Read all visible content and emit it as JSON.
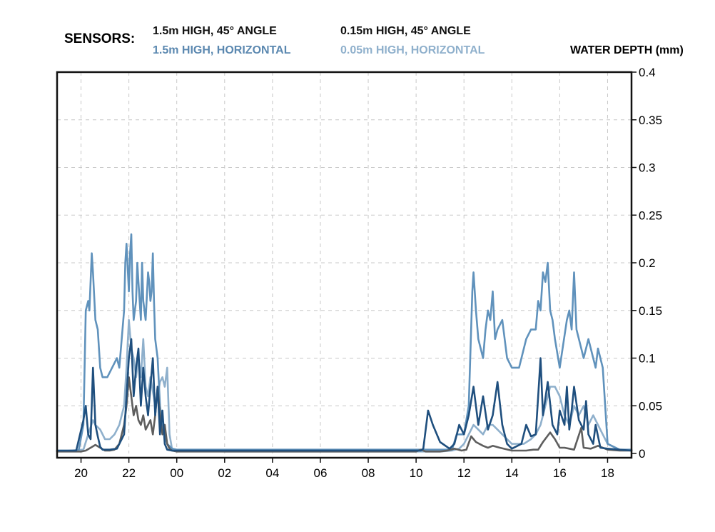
{
  "chart_data": {
    "type": "line",
    "legend": {
      "title": "SENSORS:",
      "placement": "top"
    },
    "y_label": "WATER DEPTH (mm)",
    "x_ticks": [
      "20",
      "22",
      "00",
      "02",
      "04",
      "06",
      "08",
      "10",
      "12",
      "14",
      "16",
      "18"
    ],
    "y_ticks": [
      "0",
      "0.05",
      "0.1",
      "0.15",
      "0.2",
      "0.25",
      "0.3",
      "0.35",
      "0.4"
    ],
    "x_range_hours": [
      19,
      43
    ],
    "x_tick_hours": [
      20,
      22,
      24,
      26,
      28,
      30,
      32,
      34,
      36,
      38,
      40,
      42
    ],
    "ylim": [
      0,
      0.4
    ],
    "y_tick_values": [
      0,
      0.05,
      0.1,
      0.15,
      0.2,
      0.25,
      0.3,
      0.35,
      0.4
    ],
    "grid": true,
    "series": [
      {
        "name": "1.5m HIGH, 45° ANGLE",
        "color": "#111111",
        "legend_text_color": "#111111",
        "line_color": "#5e5e5e",
        "x": [
          19,
          20,
          20.2,
          20.4,
          20.6,
          20.8,
          21,
          21.2,
          21.4,
          21.6,
          21.8,
          21.9,
          22,
          22.1,
          22.2,
          22.3,
          22.4,
          22.5,
          22.6,
          22.7,
          22.8,
          22.9,
          23,
          23.1,
          23.2,
          23.3,
          23.4,
          23.5,
          23.6,
          23.7,
          23.8,
          24,
          26,
          28,
          30,
          32,
          34,
          34.2,
          34.4,
          35,
          35.3,
          35.6,
          35.9,
          36.1,
          36.3,
          36.5,
          36.8,
          37,
          37.2,
          37.5,
          38,
          38.3,
          38.6,
          38.9,
          39.1,
          39.3,
          39.6,
          39.8,
          40,
          40.2,
          40.4,
          40.6,
          40.9,
          41,
          41.3,
          41.6,
          42,
          42.5,
          43
        ],
        "y": [
          0.002,
          0.002,
          0.003,
          0.006,
          0.009,
          0.006,
          0.003,
          0.003,
          0.004,
          0.01,
          0.03,
          0.05,
          0.08,
          0.06,
          0.04,
          0.05,
          0.035,
          0.03,
          0.04,
          0.025,
          0.03,
          0.035,
          0.02,
          0.04,
          0.07,
          0.04,
          0.02,
          0.03,
          0.01,
          0.005,
          0.003,
          0.002,
          0.002,
          0.002,
          0.002,
          0.002,
          0.002,
          0.004,
          0.002,
          0.002,
          0.003,
          0.005,
          0.003,
          0.004,
          0.018,
          0.012,
          0.008,
          0.006,
          0.008,
          0.006,
          0.003,
          0.003,
          0.003,
          0.004,
          0.004,
          0.012,
          0.022,
          0.015,
          0.006,
          0.006,
          0.005,
          0.004,
          0.027,
          0.006,
          0.005,
          0.008,
          0.004,
          0.003,
          0.003
        ]
      },
      {
        "name": "0.15m HIGH, 45° ANGLE",
        "color": "#111111",
        "legend_text_color": "#111111",
        "line_color": "#1f4f7e",
        "x": [
          19,
          19.8,
          20.1,
          20.2,
          20.3,
          20.4,
          20.5,
          20.6,
          20.7,
          20.8,
          20.9,
          21,
          21.2,
          21.5,
          21.8,
          21.9,
          22,
          22.1,
          22.2,
          22.3,
          22.4,
          22.5,
          22.6,
          22.7,
          22.8,
          22.9,
          23,
          23.1,
          23.2,
          23.3,
          23.4,
          23.5,
          23.6,
          23.8,
          24,
          26,
          28,
          30,
          32,
          34,
          34.2,
          34.3,
          34.5,
          34.7,
          35,
          35.4,
          35.6,
          35.8,
          36,
          36.2,
          36.4,
          36.6,
          36.8,
          37,
          37.2,
          37.4,
          37.6,
          37.8,
          38,
          38.4,
          38.6,
          38.8,
          39,
          39.1,
          39.2,
          39.3,
          39.5,
          39.7,
          39.9,
          40,
          40.2,
          40.3,
          40.4,
          40.5,
          40.6,
          40.8,
          41,
          41.1,
          41.2,
          41.4,
          41.5,
          41.7,
          42,
          42.5,
          43
        ],
        "y": [
          0.003,
          0.003,
          0.035,
          0.05,
          0.02,
          0.015,
          0.09,
          0.03,
          0.018,
          0.007,
          0.004,
          0.004,
          0.004,
          0.005,
          0.02,
          0.06,
          0.1,
          0.12,
          0.06,
          0.09,
          0.11,
          0.05,
          0.09,
          0.06,
          0.04,
          0.07,
          0.1,
          0.04,
          0.07,
          0.02,
          0.045,
          0.01,
          0.004,
          0.003,
          0.003,
          0.003,
          0.003,
          0.003,
          0.003,
          0.003,
          0.003,
          0.005,
          0.045,
          0.03,
          0.012,
          0.005,
          0.01,
          0.03,
          0.02,
          0.04,
          0.07,
          0.03,
          0.06,
          0.025,
          0.04,
          0.075,
          0.03,
          0.01,
          0.005,
          0.01,
          0.03,
          0.018,
          0.02,
          0.06,
          0.1,
          0.04,
          0.075,
          0.03,
          0.02,
          0.045,
          0.03,
          0.07,
          0.025,
          0.045,
          0.07,
          0.035,
          0.025,
          0.055,
          0.02,
          0.01,
          0.03,
          0.006,
          0.005,
          0.004,
          0.003
        ]
      },
      {
        "name": "1.5m HIGH, HORIZONTAL",
        "color": "#5b88b0",
        "legend_text_color": "#5b88b0",
        "line_color": "#6092bc",
        "x": [
          19,
          19.9,
          20.1,
          20.2,
          20.3,
          20.35,
          20.45,
          20.5,
          20.6,
          20.7,
          20.8,
          20.9,
          21.1,
          21.3,
          21.5,
          21.6,
          21.8,
          21.85,
          21.9,
          22,
          22.05,
          22.1,
          22.15,
          22.2,
          22.3,
          22.35,
          22.4,
          22.5,
          22.55,
          22.6,
          22.7,
          22.8,
          22.85,
          22.9,
          22.95,
          23,
          23.05,
          23.1,
          23.2,
          23.3,
          23.4,
          23.5,
          23.6,
          23.8,
          24,
          26,
          28,
          30,
          32,
          34,
          34.2,
          34.4,
          34.6,
          34.8,
          35,
          35.5,
          35.7,
          35.9,
          36,
          36.2,
          36.35,
          36.4,
          36.5,
          36.6,
          36.8,
          36.9,
          37,
          37.1,
          37.2,
          37.3,
          37.4,
          37.6,
          37.8,
          38,
          38.3,
          38.6,
          38.8,
          39,
          39.1,
          39.2,
          39.3,
          39.4,
          39.5,
          39.6,
          39.7,
          39.8,
          40,
          40.3,
          40.4,
          40.5,
          40.6,
          40.7,
          40.9,
          41,
          41.2,
          41.4,
          41.5,
          41.6,
          41.8,
          42,
          42.5,
          43
        ],
        "y": [
          0.003,
          0.003,
          0.03,
          0.15,
          0.16,
          0.15,
          0.21,
          0.19,
          0.14,
          0.13,
          0.09,
          0.08,
          0.08,
          0.09,
          0.1,
          0.09,
          0.15,
          0.2,
          0.22,
          0.17,
          0.21,
          0.23,
          0.17,
          0.14,
          0.16,
          0.2,
          0.18,
          0.14,
          0.2,
          0.16,
          0.14,
          0.19,
          0.18,
          0.16,
          0.17,
          0.21,
          0.16,
          0.12,
          0.1,
          0.05,
          0.03,
          0.02,
          0.01,
          0.005,
          0.004,
          0.004,
          0.004,
          0.004,
          0.004,
          0.004,
          0.004,
          0.004,
          0.004,
          0.004,
          0.004,
          0.004,
          0.02,
          0.02,
          0.02,
          0.05,
          0.17,
          0.19,
          0.15,
          0.12,
          0.1,
          0.13,
          0.15,
          0.14,
          0.17,
          0.12,
          0.13,
          0.14,
          0.1,
          0.09,
          0.09,
          0.12,
          0.13,
          0.13,
          0.16,
          0.15,
          0.19,
          0.18,
          0.2,
          0.15,
          0.14,
          0.12,
          0.09,
          0.14,
          0.15,
          0.13,
          0.19,
          0.13,
          0.11,
          0.1,
          0.12,
          0.1,
          0.09,
          0.11,
          0.09,
          0.01,
          0.004,
          0.004
        ]
      },
      {
        "name": "0.05m HIGH, HORIZONTAL",
        "color": "#8fb0cc",
        "legend_text_color": "#8fb0cc",
        "line_color": "#8fb0cc",
        "x": [
          19,
          20.1,
          20.3,
          20.5,
          20.6,
          20.8,
          21,
          21.2,
          21.4,
          21.6,
          21.8,
          21.9,
          22,
          22.1,
          22.2,
          22.3,
          22.4,
          22.5,
          22.6,
          22.7,
          22.8,
          22.9,
          23,
          23.1,
          23.2,
          23.3,
          23.4,
          23.5,
          23.6,
          23.7,
          23.8,
          24,
          26,
          28,
          30,
          32,
          34,
          34.5,
          35,
          35.5,
          35.8,
          36,
          36.2,
          36.4,
          36.6,
          36.8,
          37,
          37.2,
          37.4,
          37.6,
          37.8,
          38,
          38.5,
          38.8,
          39,
          39.2,
          39.4,
          39.6,
          39.8,
          40,
          40.2,
          40.4,
          40.6,
          40.8,
          41,
          41.2,
          41.4,
          41.6,
          41.8,
          42,
          42.5,
          43
        ],
        "y": [
          0.002,
          0.004,
          0.02,
          0.035,
          0.03,
          0.025,
          0.015,
          0.015,
          0.02,
          0.03,
          0.05,
          0.09,
          0.14,
          0.11,
          0.1,
          0.08,
          0.1,
          0.08,
          0.12,
          0.07,
          0.06,
          0.08,
          0.065,
          0.05,
          0.06,
          0.075,
          0.08,
          0.07,
          0.09,
          0.02,
          0.005,
          0.003,
          0.002,
          0.002,
          0.002,
          0.002,
          0.002,
          0.002,
          0.002,
          0.003,
          0.005,
          0.01,
          0.02,
          0.03,
          0.025,
          0.02,
          0.03,
          0.03,
          0.025,
          0.02,
          0.015,
          0.01,
          0.01,
          0.015,
          0.02,
          0.03,
          0.05,
          0.07,
          0.07,
          0.06,
          0.04,
          0.03,
          0.05,
          0.04,
          0.05,
          0.03,
          0.04,
          0.03,
          0.02,
          0.01,
          0.004,
          0.003
        ]
      }
    ]
  }
}
